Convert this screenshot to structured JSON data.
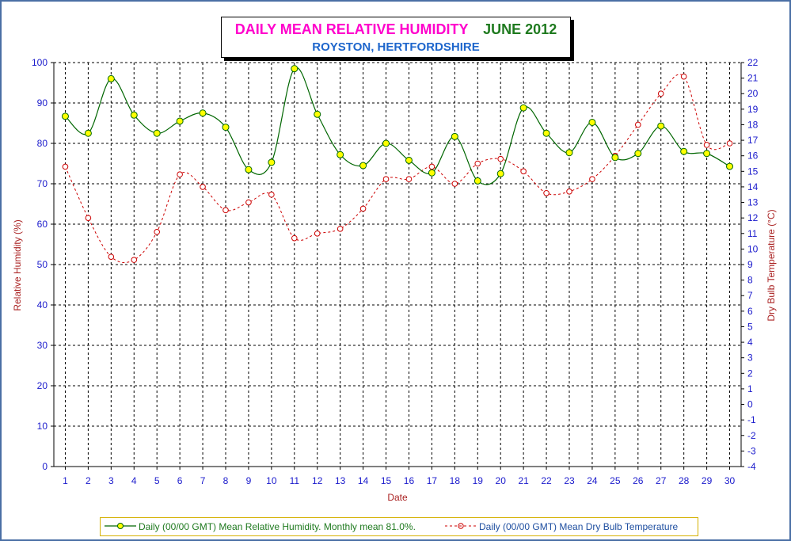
{
  "title": {
    "main": "DAILY MEAN RELATIVE HUMIDITY",
    "month": "JUNE 2012",
    "location": "ROYSTON, HERTFORDSHIRE"
  },
  "colors": {
    "rh_line": "#006600",
    "rh_marker": "#ffff00",
    "db_line": "#cc0000",
    "axis_text": "#1a1acc",
    "axis_title": "#aa2222",
    "legend_rh_text": "#1f7a1f",
    "legend_db_text": "#1f4fa0"
  },
  "legend": {
    "rh": "Daily (00/00 GMT) Mean Relative Humidity. Monthly mean 81.0%.",
    "db": "Daily (00/00 GMT) Mean Dry Bulb Temperature"
  },
  "chart_data": {
    "type": "line",
    "x": [
      1,
      2,
      3,
      4,
      5,
      6,
      7,
      8,
      9,
      10,
      11,
      12,
      13,
      14,
      15,
      16,
      17,
      18,
      19,
      20,
      21,
      22,
      23,
      24,
      25,
      26,
      27,
      28,
      29,
      30
    ],
    "xlabel": "Date",
    "ylabel_left": "Relative Humidity (%)",
    "ylabel_right": "Dry Bulb Temperature (°C)",
    "ylim_left": [
      0,
      100
    ],
    "ylim_right": [
      -4,
      22
    ],
    "yticks_left": [
      0,
      10,
      20,
      30,
      40,
      50,
      60,
      70,
      80,
      90,
      100
    ],
    "yticks_right": [
      -4,
      -3,
      -2,
      -1,
      0,
      1,
      2,
      3,
      4,
      5,
      6,
      7,
      8,
      9,
      10,
      11,
      12,
      13,
      14,
      15,
      16,
      17,
      18,
      19,
      20,
      21,
      22
    ],
    "grid": true,
    "series": [
      {
        "name": "Daily (00/00 GMT) Mean Relative Humidity. Monthly mean 81.0%.",
        "axis": "left",
        "style": "solid",
        "values": [
          86.7,
          82.5,
          96.0,
          87.0,
          82.5,
          85.5,
          87.5,
          84.0,
          73.5,
          75.3,
          98.5,
          87.2,
          77.2,
          74.5,
          80.0,
          75.8,
          72.7,
          81.7,
          70.7,
          72.5,
          88.8,
          82.5,
          77.7,
          85.2,
          76.5,
          77.5,
          84.3,
          78.0,
          77.5,
          74.3
        ]
      },
      {
        "name": "Daily (00/00 GMT) Mean Dry Bulb Temperature",
        "axis": "right",
        "style": "dashed",
        "values": [
          15.3,
          12.0,
          9.5,
          9.3,
          11.1,
          14.8,
          14.0,
          12.5,
          13.0,
          13.5,
          10.7,
          11.0,
          11.3,
          12.6,
          14.5,
          14.5,
          15.3,
          14.2,
          15.5,
          15.8,
          15.0,
          13.6,
          13.7,
          14.5,
          16.0,
          18.0,
          20.0,
          21.1,
          16.7,
          16.8
        ]
      }
    ]
  }
}
